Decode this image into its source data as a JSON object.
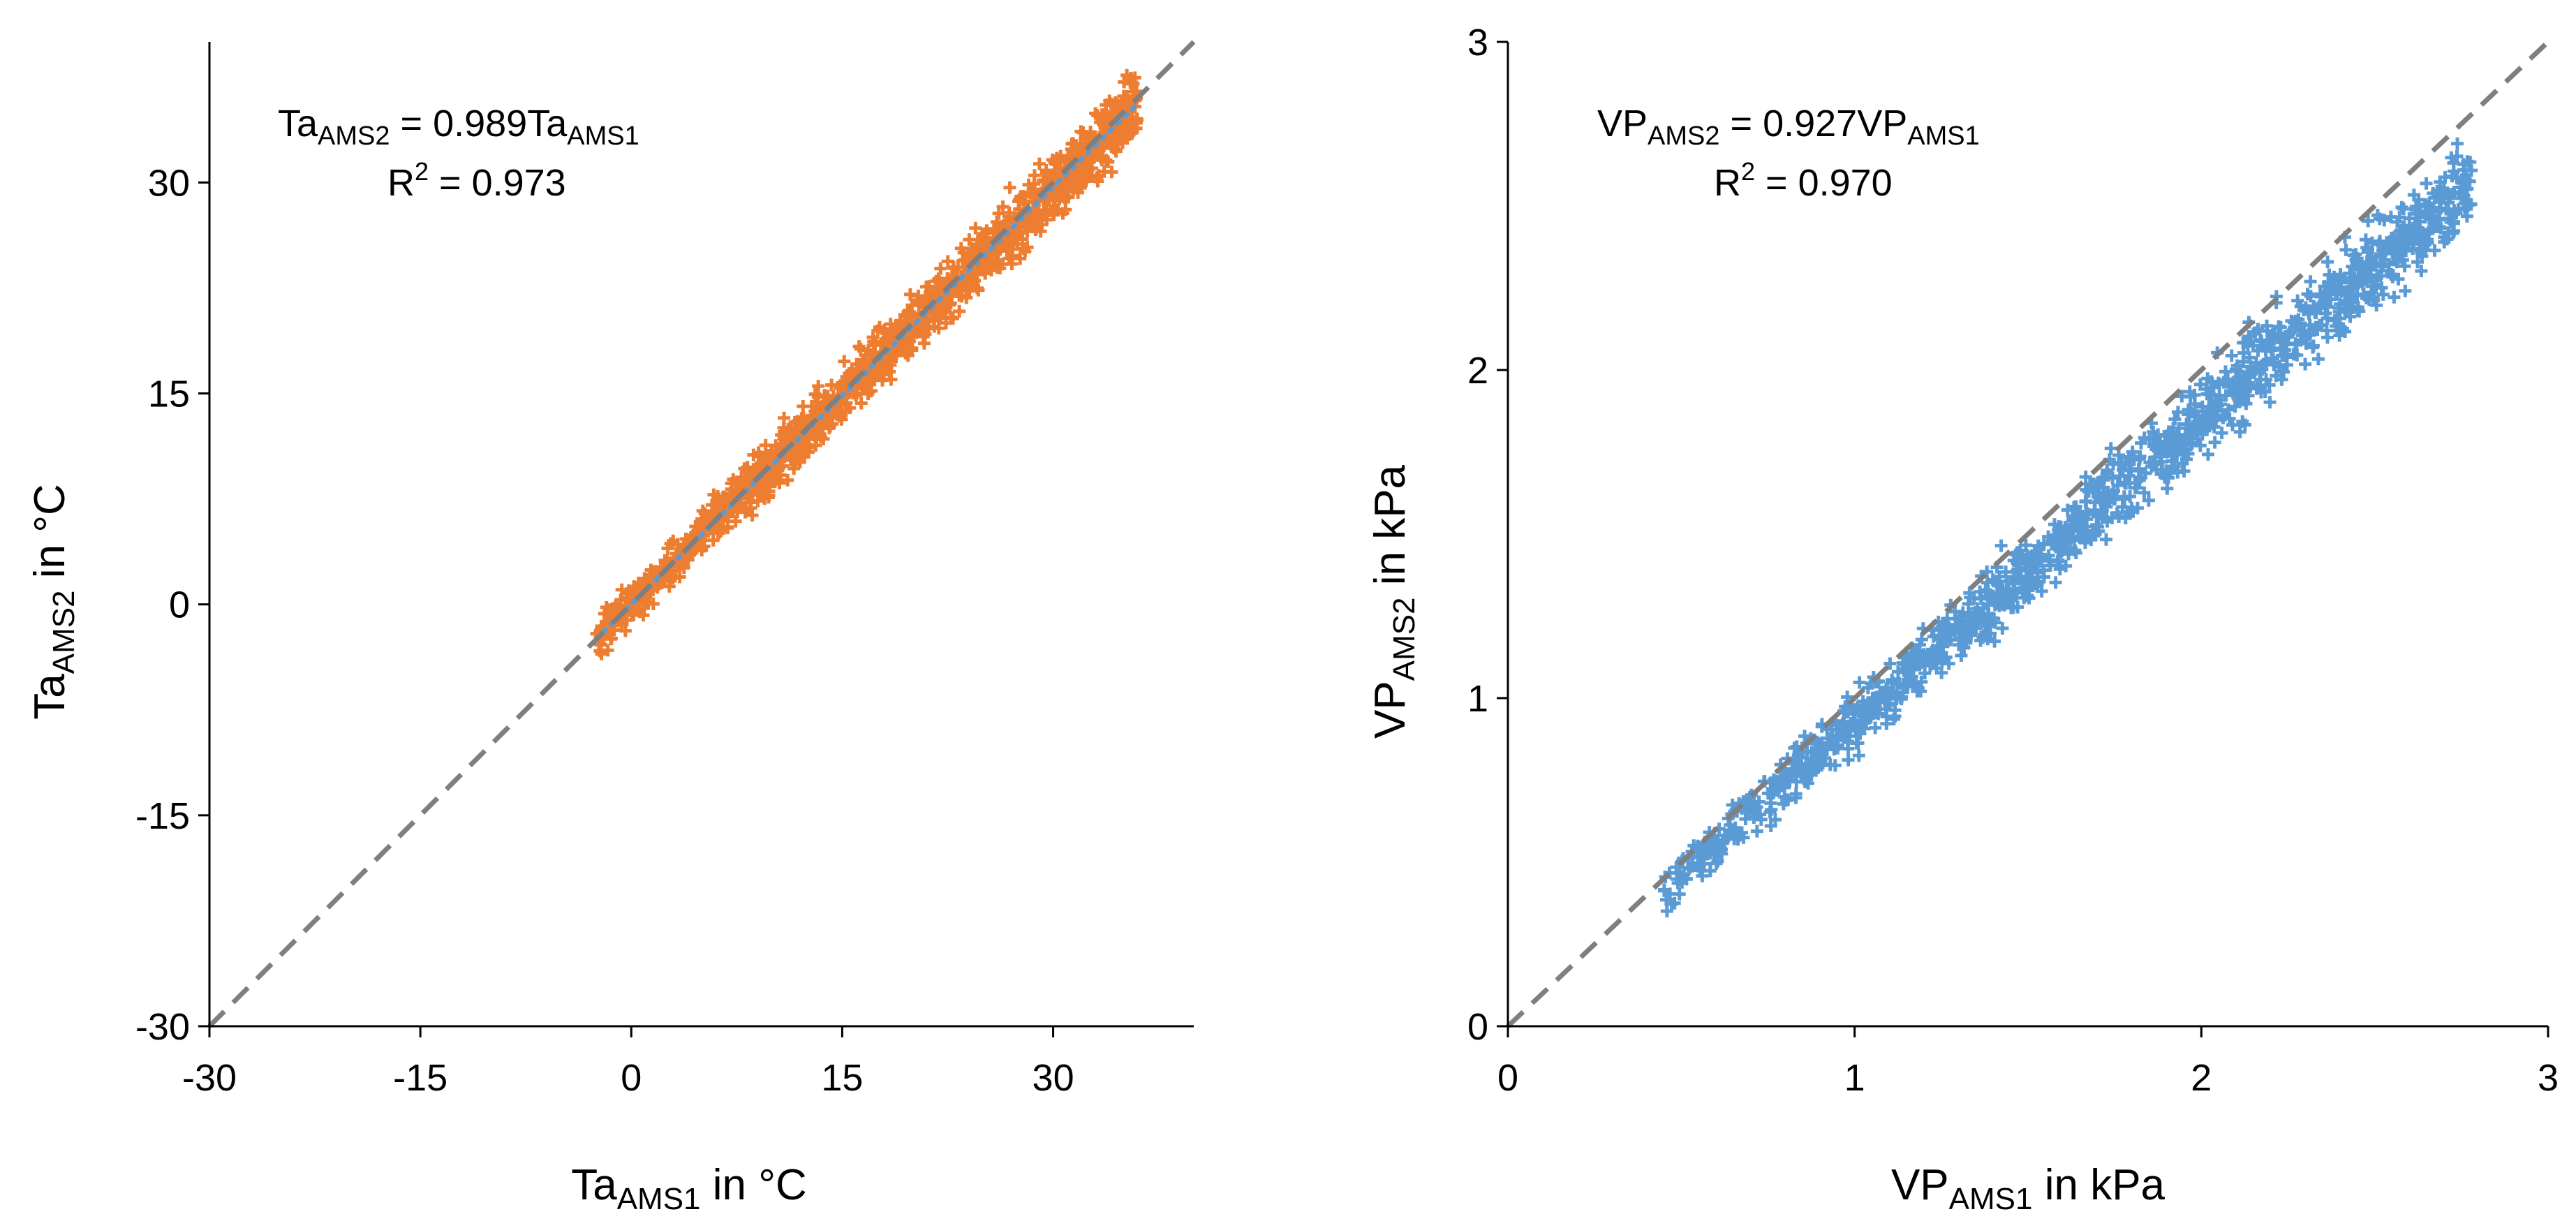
{
  "chart_data": [
    {
      "type": "scatter",
      "x_axis": {
        "label": "Ta",
        "label_sub": "AMS1",
        "label_suffix": " in °C",
        "range": [
          -30,
          40
        ],
        "ticks": [
          -30,
          -15,
          0,
          15,
          30
        ]
      },
      "y_axis": {
        "label": "Ta",
        "label_sub": "AMS2",
        "label_suffix": " in °C",
        "range": [
          -30,
          40
        ],
        "ticks": [
          -30,
          -15,
          0,
          15,
          30
        ]
      },
      "equation": {
        "lhs": "Ta",
        "lhs_sub": "AMS2",
        "rhs": " = 0.989Ta",
        "rhs_sub": "AMS1"
      },
      "r_squared": {
        "label": "R",
        "sup": "2",
        "value": " = 0.973"
      },
      "fit_slope": 0.989,
      "reference_line": {
        "from": [
          -30,
          -30
        ],
        "to": [
          40,
          40
        ]
      },
      "point_color": "#ED7D31",
      "trend_color": "#5B9BD5",
      "ref_line_color": "#7F7F7F",
      "point_cloud": {
        "x_min": -2.5,
        "x_max": 36,
        "y_spread": 2.2,
        "count": 1400
      }
    },
    {
      "type": "scatter",
      "x_axis": {
        "label": "VP",
        "label_sub": "AMS1",
        "label_suffix": " in kPa",
        "range": [
          0,
          3
        ],
        "ticks": [
          0,
          1,
          2,
          3
        ]
      },
      "y_axis": {
        "label": "VP",
        "label_sub": "AMS2",
        "label_suffix": " in kPa",
        "range": [
          0,
          3
        ],
        "ticks": [
          0,
          1,
          2,
          3
        ]
      },
      "equation": {
        "lhs": "VP",
        "lhs_sub": "AMS2",
        "rhs": " = 0.927VP",
        "rhs_sub": "AMS1"
      },
      "r_squared": {
        "label": "R",
        "sup": "2",
        "value": " = 0.970"
      },
      "fit_slope": 0.927,
      "reference_line": {
        "from": [
          0,
          0
        ],
        "to": [
          3,
          3
        ]
      },
      "point_color": "#5B9BD5",
      "trend_color": "#5B9BD5",
      "ref_line_color": "#7F7F7F",
      "point_cloud": {
        "x_min": 0.45,
        "x_max": 2.78,
        "y_spread": 0.12,
        "count": 1400
      }
    }
  ]
}
